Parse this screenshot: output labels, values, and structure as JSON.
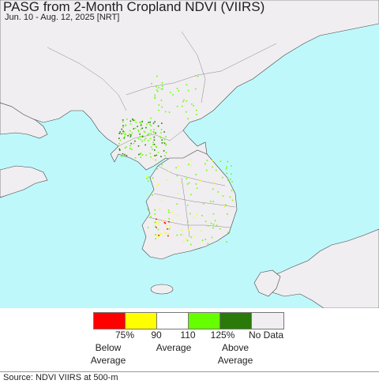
{
  "header": {
    "title": "PASG from 2-Month Cropland NDVI (VIIRS)",
    "subtitle": "Jun. 10 - Aug. 12, 2025 [NRT]"
  },
  "legend": {
    "swatches": [
      {
        "color": "#ff0000"
      },
      {
        "color": "#ffff00"
      },
      {
        "color": "#ffffff"
      },
      {
        "color": "#66ff00"
      },
      {
        "color": "#2a7a0a"
      },
      {
        "color": "#f0eef0"
      }
    ],
    "ticks": [
      "75%",
      "90",
      "110",
      "125%"
    ],
    "no_data": "No Data",
    "below": "Below\nAverage",
    "average": "Average",
    "above": "Above\nAverage"
  },
  "footer": {
    "source": "Source: NDVI VIIRS at 500-m"
  },
  "colors": {
    "sea": "#bff8fb",
    "land": "#f0eef0",
    "border": "#555555"
  }
}
